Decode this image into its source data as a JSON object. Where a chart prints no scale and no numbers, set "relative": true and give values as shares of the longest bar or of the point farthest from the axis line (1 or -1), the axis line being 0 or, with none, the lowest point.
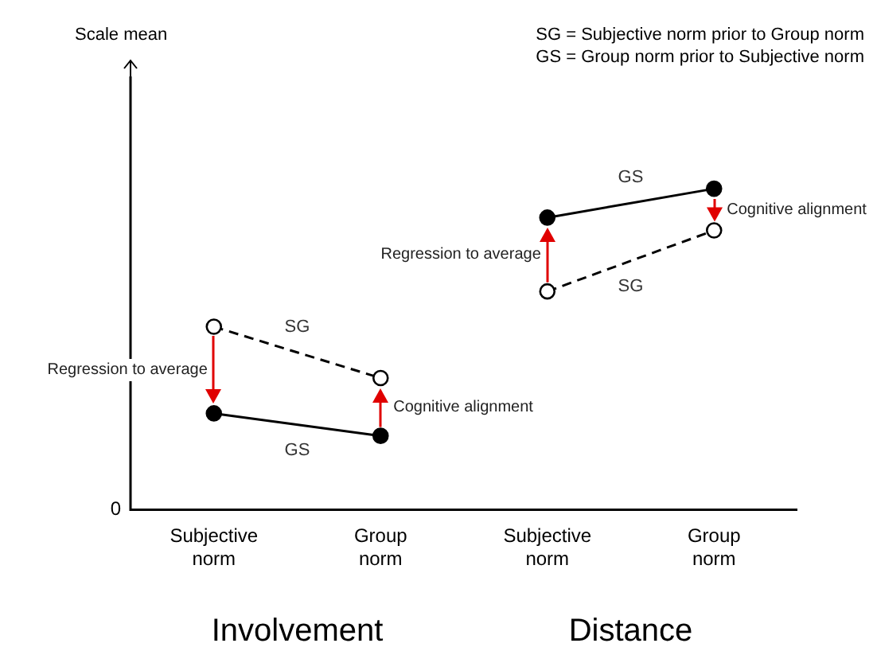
{
  "chart_data": {
    "type": "line",
    "relative": true,
    "categories": [
      "Subjective norm",
      "Group norm",
      "Subjective norm",
      "Group norm"
    ],
    "series": [
      {
        "name": "SG",
        "color": "#000000",
        "line_style": "dashed",
        "values": [
          0.57,
          0.41,
          null,
          null
        ]
      },
      {
        "name": "GS",
        "color": "#000000",
        "line_style": "solid",
        "values": [
          0.3,
          0.23,
          null,
          null
        ]
      },
      {
        "name": "SG",
        "color": "#000000",
        "line_style": "dashed",
        "values": [
          null,
          null,
          0.68,
          0.87
        ]
      },
      {
        "name": "GS",
        "color": "#000000",
        "line_style": "solid",
        "values": [
          null,
          null,
          0.91,
          1
        ]
      }
    ],
    "marker": "circle",
    "legend": false,
    "grid": false,
    "annotations": [
      "SG = Subjective norm prior to Group norm",
      "GS = Group norm prior to Subjective norm",
      "Regression to average",
      "Cognitive alignment",
      "Regression to average",
      "Cognitive alignment",
      "Involvement",
      "Distance",
      "0",
      "Scale mean"
    ]
  }
}
